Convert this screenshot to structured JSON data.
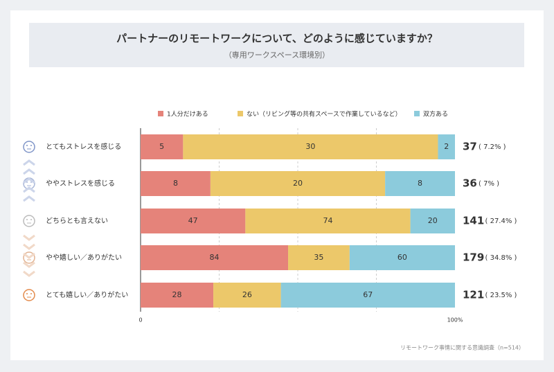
{
  "chart_data": {
    "type": "stacked_bar_100",
    "title": "パートナーのリモートワークについて、どのように感じていますか？",
    "subtitle": "（専用ワークスペース環境別）",
    "categories": [
      "とてもストレスを感じる",
      "ややストレスを感じる",
      "どちらとも言えない",
      "やや嬉しい／ありがたい",
      "とても嬉しい／ありがたい"
    ],
    "series": [
      {
        "name": "1人分だけある",
        "color": "#e5837a",
        "values": [
          5,
          8,
          47,
          84,
          28
        ]
      },
      {
        "name": "ない（リビング等の共有スペースで作業しているなど）",
        "color": "#ecc86a",
        "values": [
          30,
          20,
          74,
          35,
          26
        ]
      },
      {
        "name": "双方ある",
        "color": "#8ccbdc",
        "values": [
          2,
          8,
          20,
          60,
          67
        ]
      }
    ],
    "totals": [
      37,
      36,
      141,
      179,
      121
    ],
    "shares": [
      7.2,
      7,
      27.4,
      34.8,
      23.5
    ],
    "share_labels": [
      "( 7.2% )",
      "( 7% )",
      "( 27.4% )",
      "( 34.8% )",
      "( 23.5% )"
    ],
    "xlim": [
      0,
      100
    ],
    "xticks": [
      0,
      {
        "value": 100,
        "label": "100%"
      }
    ],
    "gridlines": [
      25,
      50,
      75
    ],
    "source": "リモートワーク事情に関する意識調査（n=514）"
  }
}
